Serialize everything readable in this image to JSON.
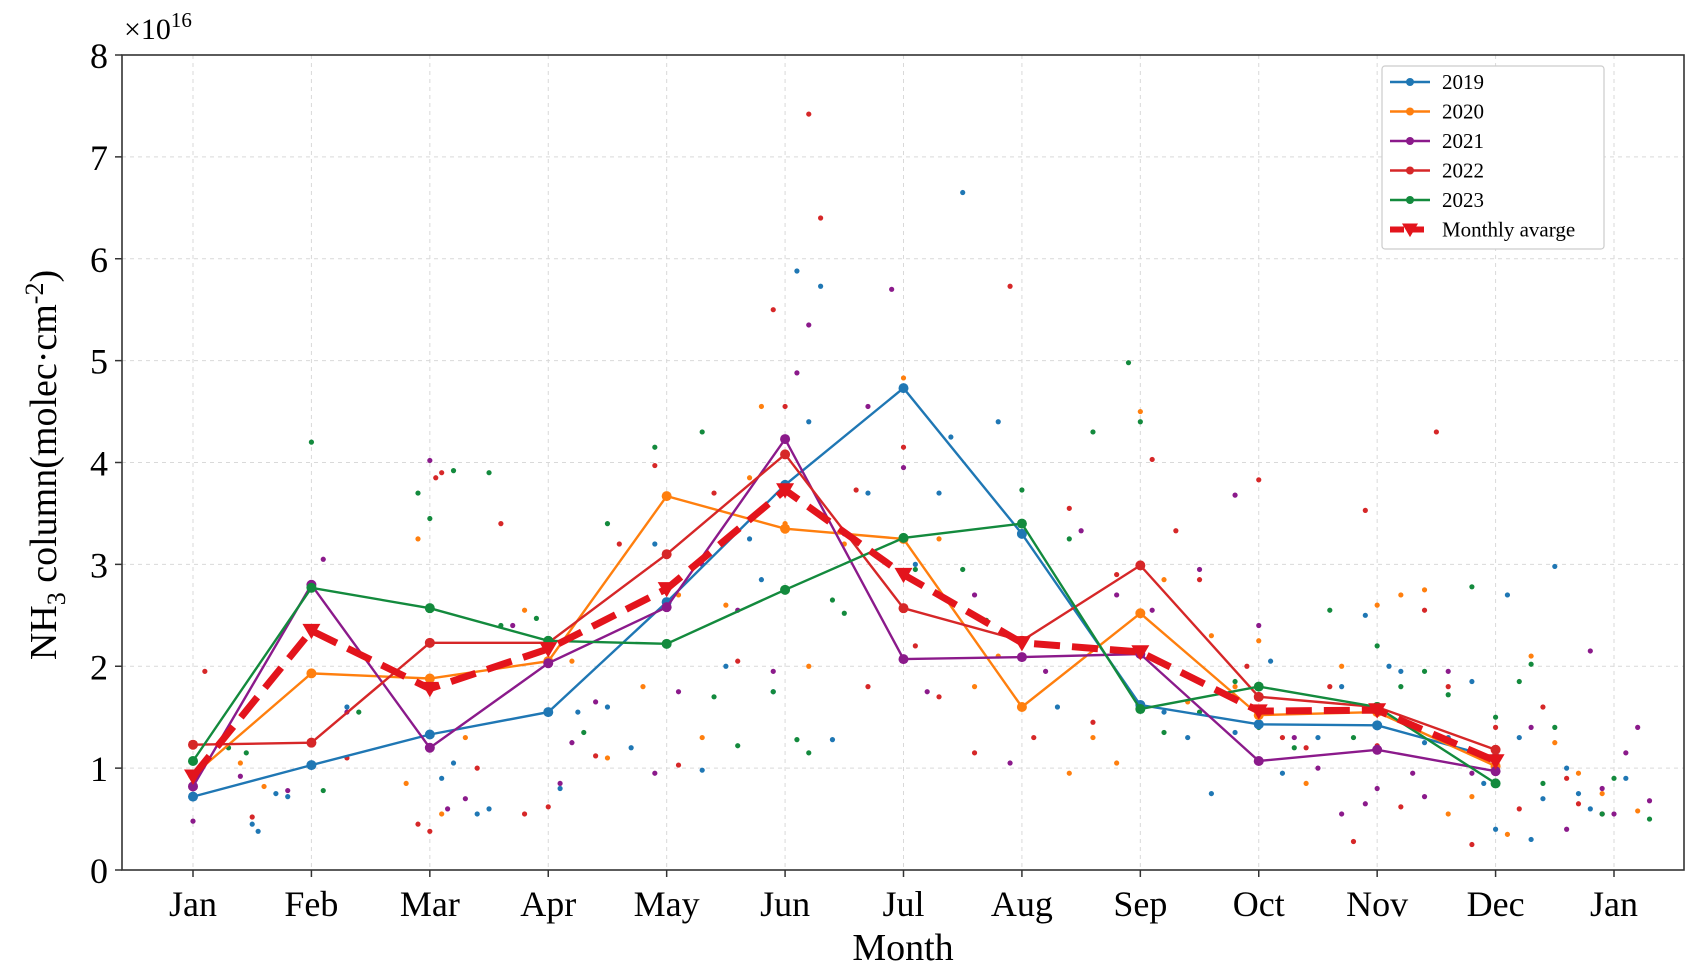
{
  "chart_data": {
    "type": "line",
    "title": "",
    "xlabel": "Month",
    "ylabel": "NH₃ column(molec·cm⁻²)",
    "ylabel_parts": {
      "main": "NH",
      "sub": "3",
      "rest": " column(molec·cm",
      "sup": "-2",
      "end": ")"
    },
    "y_multiplier": "×10",
    "y_multiplier_exp": "16",
    "categories": [
      "Jan",
      "Feb",
      "Mar",
      "Apr",
      "May",
      "Jun",
      "Jul",
      "Aug",
      "Sep",
      "Oct",
      "Nov",
      "Dec",
      "Jan"
    ],
    "xlim": [
      1,
      13
    ],
    "ylim": [
      0,
      8
    ],
    "yticks": [
      "0",
      "1",
      "2",
      "3",
      "4",
      "5",
      "6",
      "7",
      "8"
    ],
    "grid": true,
    "legend_position": "top-right",
    "series": [
      {
        "name": "2019",
        "color": "#1f77b4",
        "x": [
          1,
          2,
          3,
          4,
          5,
          6,
          7,
          8,
          9,
          10,
          11,
          12
        ],
        "values": [
          0.72,
          1.03,
          1.33,
          1.55,
          2.63,
          3.78,
          4.73,
          3.3,
          1.62,
          1.43,
          1.42,
          1.1
        ]
      },
      {
        "name": "2020",
        "color": "#ff7f0e",
        "x": [
          1,
          2,
          3,
          4,
          5,
          6,
          7,
          8,
          9,
          10,
          11,
          12
        ],
        "values": [
          0.93,
          1.93,
          1.88,
          2.05,
          3.67,
          3.35,
          3.25,
          1.6,
          2.52,
          1.52,
          1.55,
          1.02
        ]
      },
      {
        "name": "2021",
        "color": "#8b1a8b",
        "x": [
          1,
          2,
          3,
          4,
          5,
          6,
          7,
          8,
          9,
          10,
          11,
          12
        ],
        "values": [
          0.82,
          2.8,
          1.2,
          2.03,
          2.58,
          4.23,
          2.07,
          2.09,
          2.12,
          1.07,
          1.18,
          0.97
        ]
      },
      {
        "name": "2022",
        "color": "#d62728",
        "x": [
          1,
          2,
          3,
          4,
          5,
          6,
          7,
          8,
          9,
          10,
          11,
          12
        ],
        "values": [
          1.23,
          1.25,
          2.23,
          2.23,
          3.1,
          4.08,
          2.57,
          2.25,
          2.99,
          1.7,
          1.6,
          1.18
        ]
      },
      {
        "name": "2023",
        "color": "#138a3d",
        "x": [
          1,
          2,
          3,
          4,
          5,
          6,
          7,
          8,
          9,
          10,
          11,
          12
        ],
        "values": [
          1.07,
          2.77,
          2.57,
          2.25,
          2.22,
          2.75,
          3.26,
          3.4,
          1.58,
          1.8,
          1.6,
          0.85
        ]
      },
      {
        "name": "Monthly avarge",
        "color": "#e3141c",
        "style": "dashed-triangle",
        "x": [
          1,
          2,
          3,
          4,
          5,
          6,
          7,
          8,
          9,
          10,
          11,
          12
        ],
        "values": [
          0.92,
          2.35,
          1.78,
          2.17,
          2.76,
          3.73,
          2.9,
          2.23,
          2.14,
          1.56,
          1.57,
          1.07
        ]
      }
    ],
    "scatter": [
      {
        "color": "#1f77b4",
        "points": [
          [
            1.5,
            0.45
          ],
          [
            1.55,
            0.38
          ],
          [
            1.7,
            0.75
          ],
          [
            1.8,
            0.72
          ],
          [
            2.3,
            1.6
          ],
          [
            3.1,
            0.9
          ],
          [
            3.2,
            1.05
          ],
          [
            3.4,
            0.55
          ],
          [
            3.5,
            0.6
          ],
          [
            4.1,
            0.8
          ],
          [
            4.25,
            1.55
          ],
          [
            4.5,
            1.6
          ],
          [
            4.7,
            1.2
          ],
          [
            4.9,
            3.2
          ],
          [
            5.3,
            0.98
          ],
          [
            5.5,
            2.0
          ],
          [
            5.7,
            3.25
          ],
          [
            5.8,
            2.85
          ],
          [
            5.9,
            1.75
          ],
          [
            6.1,
            5.88
          ],
          [
            6.3,
            5.73
          ],
          [
            6.2,
            4.4
          ],
          [
            6.4,
            1.28
          ],
          [
            6.7,
            3.7
          ],
          [
            7.1,
            3.0
          ],
          [
            7.3,
            3.7
          ],
          [
            7.4,
            4.25
          ],
          [
            7.5,
            6.65
          ],
          [
            7.8,
            4.4
          ],
          [
            8.0,
            2.2
          ],
          [
            8.3,
            1.6
          ],
          [
            9.2,
            1.55
          ],
          [
            9.4,
            1.3
          ],
          [
            9.6,
            0.75
          ],
          [
            9.8,
            1.35
          ],
          [
            10.1,
            2.05
          ],
          [
            10.2,
            0.95
          ],
          [
            10.5,
            1.3
          ],
          [
            10.7,
            1.8
          ],
          [
            10.9,
            2.5
          ],
          [
            11.1,
            2.0
          ],
          [
            11.2,
            1.95
          ],
          [
            11.4,
            1.25
          ],
          [
            11.6,
            1.3
          ],
          [
            11.8,
            1.85
          ],
          [
            11.9,
            0.85
          ],
          [
            12.0,
            0.4
          ],
          [
            12.1,
            2.7
          ],
          [
            12.2,
            1.3
          ],
          [
            12.3,
            0.3
          ],
          [
            12.4,
            0.7
          ],
          [
            12.5,
            2.98
          ],
          [
            12.6,
            1.0
          ],
          [
            12.7,
            0.75
          ],
          [
            12.8,
            0.6
          ],
          [
            12.9,
            0.55
          ],
          [
            13.1,
            0.9
          ]
        ]
      },
      {
        "color": "#ff7f0e",
        "points": [
          [
            1.4,
            1.05
          ],
          [
            1.6,
            0.82
          ],
          [
            2.8,
            0.85
          ],
          [
            2.9,
            3.25
          ],
          [
            3.1,
            0.55
          ],
          [
            3.3,
            1.3
          ],
          [
            3.8,
            2.55
          ],
          [
            4.2,
            2.05
          ],
          [
            4.5,
            1.1
          ],
          [
            4.8,
            1.8
          ],
          [
            5.1,
            2.7
          ],
          [
            5.3,
            1.3
          ],
          [
            5.5,
            2.6
          ],
          [
            5.7,
            3.85
          ],
          [
            5.8,
            4.55
          ],
          [
            6.0,
            3.4
          ],
          [
            6.2,
            2.0
          ],
          [
            6.5,
            3.2
          ],
          [
            7.0,
            4.83
          ],
          [
            7.3,
            3.25
          ],
          [
            7.6,
            1.8
          ],
          [
            7.8,
            2.1
          ],
          [
            8.4,
            0.95
          ],
          [
            8.6,
            1.3
          ],
          [
            8.8,
            1.05
          ],
          [
            9.0,
            4.5
          ],
          [
            9.2,
            2.85
          ],
          [
            9.4,
            1.65
          ],
          [
            9.6,
            2.3
          ],
          [
            9.8,
            1.8
          ],
          [
            10.0,
            2.25
          ],
          [
            10.4,
            0.85
          ],
          [
            10.7,
            2.0
          ],
          [
            11.0,
            2.6
          ],
          [
            11.2,
            2.7
          ],
          [
            11.4,
            2.75
          ],
          [
            11.6,
            0.55
          ],
          [
            11.8,
            0.72
          ],
          [
            12.1,
            0.35
          ],
          [
            12.3,
            2.1
          ],
          [
            12.5,
            1.25
          ],
          [
            12.9,
            0.75
          ],
          [
            13.2,
            0.58
          ],
          [
            12.7,
            0.95
          ]
        ]
      },
      {
        "color": "#8b1a8b",
        "points": [
          [
            1.0,
            0.48
          ],
          [
            1.4,
            0.92
          ],
          [
            1.8,
            0.78
          ],
          [
            2.1,
            3.05
          ],
          [
            2.3,
            1.55
          ],
          [
            3.0,
            4.02
          ],
          [
            3.15,
            0.6
          ],
          [
            3.3,
            0.7
          ],
          [
            3.7,
            2.4
          ],
          [
            4.1,
            0.85
          ],
          [
            4.2,
            1.25
          ],
          [
            4.4,
            1.65
          ],
          [
            4.9,
            0.95
          ],
          [
            5.1,
            1.75
          ],
          [
            5.3,
            3.0
          ],
          [
            5.6,
            2.55
          ],
          [
            5.9,
            1.95
          ],
          [
            6.1,
            4.88
          ],
          [
            6.2,
            5.35
          ],
          [
            6.5,
            3.3
          ],
          [
            6.7,
            4.55
          ],
          [
            6.9,
            5.7
          ],
          [
            7.0,
            3.95
          ],
          [
            7.2,
            1.75
          ],
          [
            7.6,
            2.7
          ],
          [
            7.9,
            1.05
          ],
          [
            8.2,
            1.95
          ],
          [
            8.5,
            3.33
          ],
          [
            8.8,
            2.7
          ],
          [
            9.1,
            2.55
          ],
          [
            9.5,
            2.95
          ],
          [
            9.8,
            3.68
          ],
          [
            10.0,
            2.4
          ],
          [
            10.3,
            1.3
          ],
          [
            10.5,
            1.0
          ],
          [
            10.7,
            0.55
          ],
          [
            10.9,
            0.65
          ],
          [
            11.0,
            0.8
          ],
          [
            11.3,
            0.95
          ],
          [
            11.4,
            0.72
          ],
          [
            11.6,
            1.95
          ],
          [
            11.8,
            0.95
          ],
          [
            12.3,
            1.4
          ],
          [
            12.6,
            0.4
          ],
          [
            12.8,
            2.15
          ],
          [
            12.9,
            0.8
          ],
          [
            13.0,
            0.55
          ],
          [
            13.1,
            1.15
          ],
          [
            13.2,
            1.4
          ],
          [
            13.3,
            0.68
          ]
        ]
      },
      {
        "color": "#d62728",
        "points": [
          [
            1.1,
            1.95
          ],
          [
            1.5,
            0.52
          ],
          [
            2.3,
            1.1
          ],
          [
            2.9,
            0.45
          ],
          [
            3.0,
            0.38
          ],
          [
            3.05,
            3.85
          ],
          [
            3.1,
            3.9
          ],
          [
            3.4,
            1.0
          ],
          [
            3.6,
            3.4
          ],
          [
            3.8,
            0.55
          ],
          [
            4.0,
            0.62
          ],
          [
            4.4,
            1.12
          ],
          [
            4.6,
            3.2
          ],
          [
            4.9,
            3.97
          ],
          [
            5.1,
            1.03
          ],
          [
            5.4,
            3.7
          ],
          [
            5.6,
            2.05
          ],
          [
            5.9,
            5.5
          ],
          [
            6.0,
            4.55
          ],
          [
            6.2,
            7.42
          ],
          [
            6.3,
            6.4
          ],
          [
            6.6,
            3.73
          ],
          [
            6.7,
            1.8
          ],
          [
            7.0,
            4.15
          ],
          [
            7.1,
            2.2
          ],
          [
            7.3,
            1.7
          ],
          [
            7.6,
            1.15
          ],
          [
            7.9,
            5.73
          ],
          [
            8.1,
            1.3
          ],
          [
            8.4,
            3.55
          ],
          [
            8.6,
            1.45
          ],
          [
            8.8,
            2.9
          ],
          [
            9.1,
            4.03
          ],
          [
            9.3,
            3.33
          ],
          [
            9.5,
            2.85
          ],
          [
            9.9,
            2.0
          ],
          [
            10.0,
            3.83
          ],
          [
            10.2,
            1.3
          ],
          [
            10.4,
            1.2
          ],
          [
            10.6,
            1.8
          ],
          [
            10.8,
            0.28
          ],
          [
            10.9,
            3.53
          ],
          [
            11.0,
            1.22
          ],
          [
            11.2,
            0.62
          ],
          [
            11.4,
            2.55
          ],
          [
            11.5,
            4.3
          ],
          [
            11.6,
            1.8
          ],
          [
            11.8,
            0.25
          ],
          [
            12.0,
            1.4
          ],
          [
            12.2,
            0.6
          ],
          [
            12.4,
            1.6
          ],
          [
            12.6,
            0.9
          ],
          [
            12.7,
            0.65
          ],
          [
            12.9,
            0.55
          ]
        ]
      },
      {
        "color": "#138a3d",
        "points": [
          [
            1.3,
            1.2
          ],
          [
            1.45,
            1.15
          ],
          [
            2.0,
            4.2
          ],
          [
            2.1,
            0.78
          ],
          [
            2.4,
            1.55
          ],
          [
            2.9,
            3.7
          ],
          [
            3.0,
            3.45
          ],
          [
            3.2,
            3.92
          ],
          [
            3.5,
            3.9
          ],
          [
            3.6,
            2.4
          ],
          [
            3.9,
            2.47
          ],
          [
            4.3,
            1.35
          ],
          [
            4.5,
            3.4
          ],
          [
            4.9,
            4.15
          ],
          [
            5.3,
            4.3
          ],
          [
            5.4,
            1.7
          ],
          [
            5.6,
            1.22
          ],
          [
            5.9,
            1.75
          ],
          [
            6.1,
            1.28
          ],
          [
            6.2,
            1.15
          ],
          [
            6.4,
            2.65
          ],
          [
            6.5,
            2.52
          ],
          [
            7.1,
            2.95
          ],
          [
            7.5,
            2.95
          ],
          [
            7.7,
            2.45
          ],
          [
            8.0,
            3.73
          ],
          [
            8.4,
            3.25
          ],
          [
            8.6,
            4.3
          ],
          [
            8.9,
            4.98
          ],
          [
            9.0,
            4.4
          ],
          [
            9.2,
            1.35
          ],
          [
            9.5,
            1.55
          ],
          [
            9.8,
            1.85
          ],
          [
            10.0,
            1.4
          ],
          [
            10.3,
            1.2
          ],
          [
            10.6,
            2.55
          ],
          [
            10.8,
            1.3
          ],
          [
            11.0,
            2.2
          ],
          [
            11.2,
            1.8
          ],
          [
            11.4,
            1.95
          ],
          [
            11.6,
            1.72
          ],
          [
            11.8,
            2.78
          ],
          [
            12.0,
            1.5
          ],
          [
            12.2,
            1.85
          ],
          [
            12.3,
            2.02
          ],
          [
            12.4,
            0.85
          ],
          [
            12.5,
            1.4
          ],
          [
            12.9,
            0.55
          ],
          [
            13.0,
            0.9
          ],
          [
            13.3,
            0.5
          ]
        ]
      }
    ]
  }
}
